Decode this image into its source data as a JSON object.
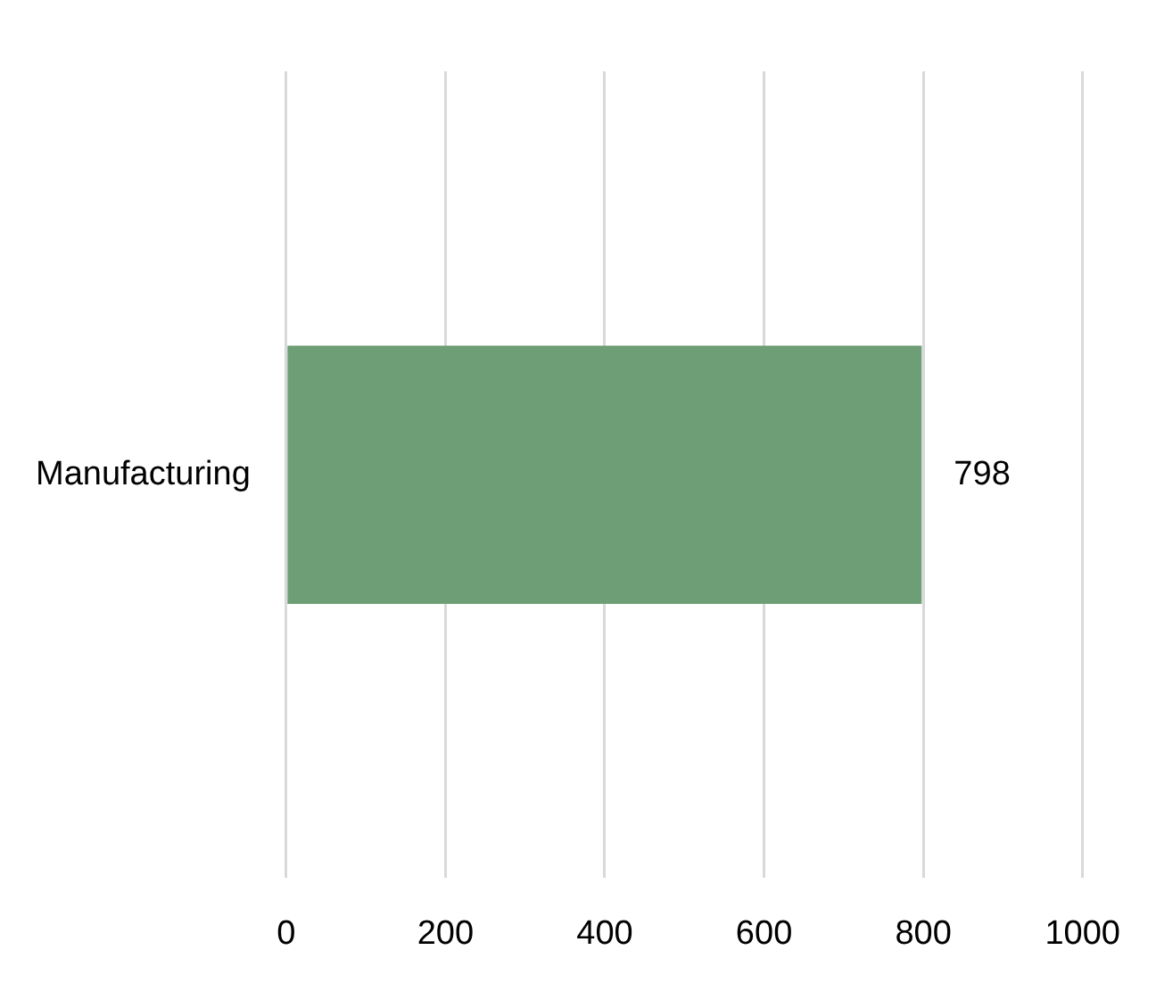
{
  "chart_data": {
    "type": "bar",
    "orientation": "horizontal",
    "categories": [
      "Manufacturing"
    ],
    "values": [
      798
    ],
    "color": "#6e9e76",
    "xlim": [
      0,
      1000
    ],
    "xticks": [
      0,
      200,
      400,
      600,
      800,
      1000
    ],
    "grid": "x",
    "data_labels": true,
    "legend": false
  }
}
